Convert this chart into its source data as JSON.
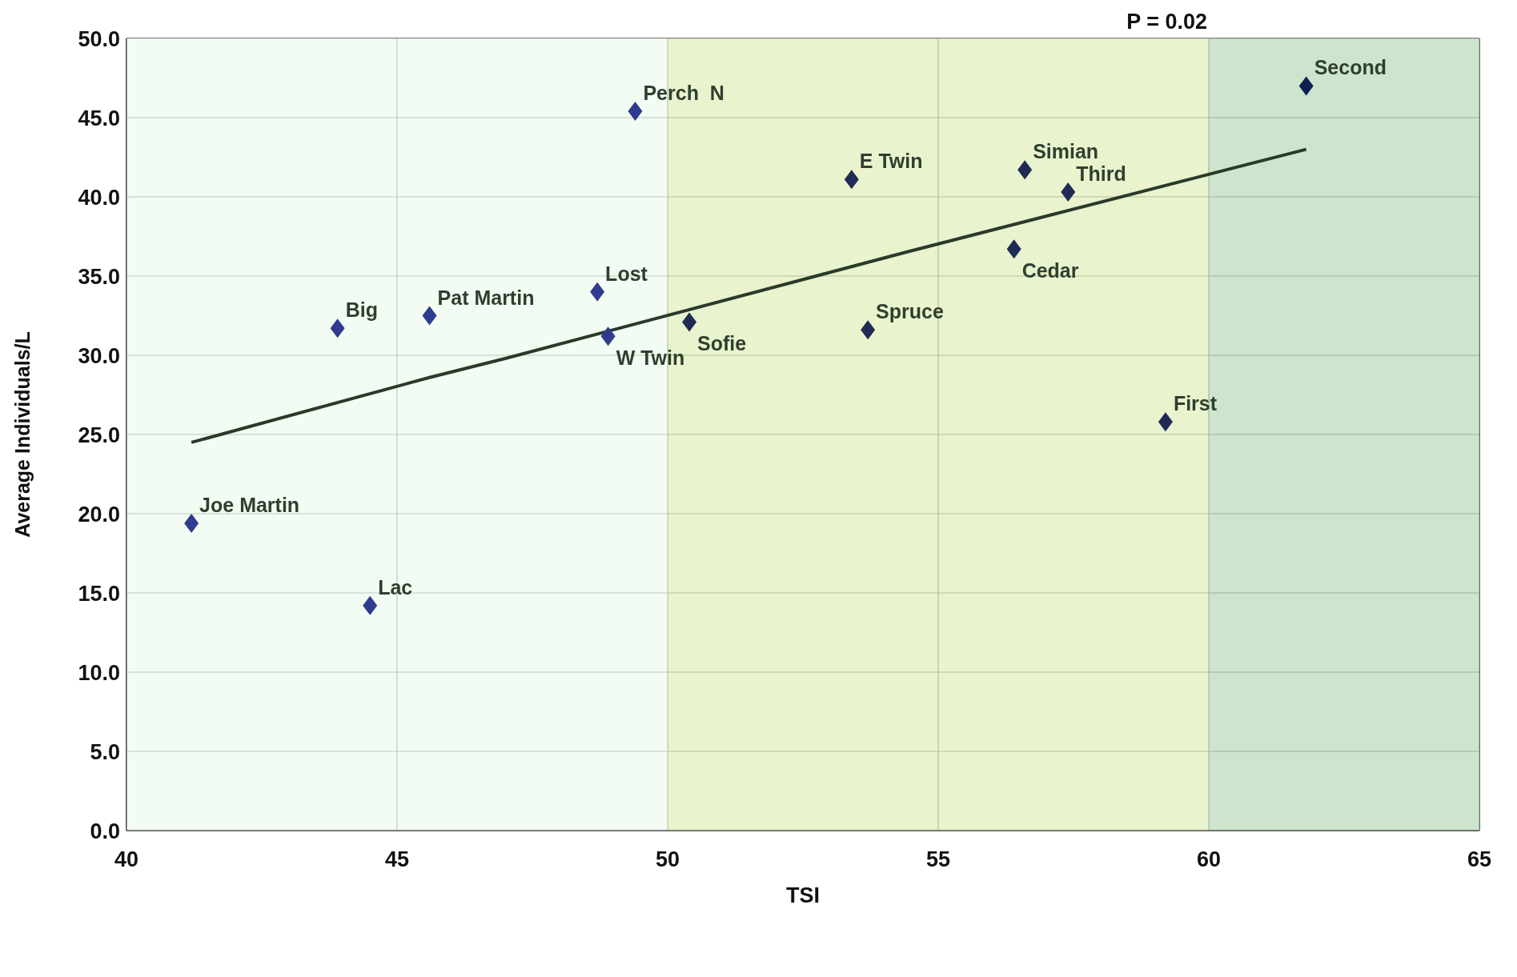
{
  "chart_data": {
    "type": "scatter",
    "xlabel": "TSI",
    "ylabel": "Average Individuals/L",
    "annotations": [
      "P = 0.02"
    ],
    "xlim": [
      40,
      65
    ],
    "xticks": [
      40,
      45,
      50,
      55,
      60,
      65
    ],
    "ylim": [
      0,
      50
    ],
    "yticks": [
      {
        "value": 0,
        "label": "0.0"
      },
      {
        "value": 5,
        "label": "5.0"
      },
      {
        "value": 10,
        "label": "10.0"
      },
      {
        "value": 15,
        "label": "15.0"
      },
      {
        "value": 20,
        "label": "20.0"
      },
      {
        "value": 25,
        "label": "25.0"
      },
      {
        "value": 30,
        "label": "30.0"
      },
      {
        "value": 35,
        "label": "35.0"
      },
      {
        "value": 40,
        "label": "40.0"
      },
      {
        "value": 45,
        "label": "45.0"
      },
      {
        "value": 50,
        "label": "50.0"
      }
    ],
    "grid": true,
    "legend": false,
    "bands": [
      {
        "axis": "x",
        "from": 40,
        "to": 50,
        "color": "#f0fbef"
      },
      {
        "axis": "x",
        "from": 50,
        "to": 60,
        "color": "#e4f0c0"
      },
      {
        "axis": "x",
        "from": 60,
        "to": 65,
        "color": "#c0dfc0"
      }
    ],
    "series": [
      {
        "type": "scatter",
        "marker": "diamond",
        "color": "#2e3b8f",
        "x": [
          41.2,
          44.5,
          43.9,
          45.6,
          48.7,
          48.9,
          49.4,
          50.4,
          53.4,
          53.7,
          56.4,
          56.6,
          57.4,
          59.2,
          61.8
        ],
        "values": [
          19.4,
          14.2,
          31.7,
          32.5,
          34.0,
          31.2,
          45.4,
          32.1,
          41.1,
          31.6,
          36.7,
          41.7,
          40.3,
          25.8,
          47.0
        ],
        "value_labels": [
          "Joe Martin",
          "Lac",
          "Big",
          "Pat Martin",
          "Lost",
          "W Twin",
          "Perch  N",
          "Sofie",
          "E Twin",
          "Spruce",
          "Cedar",
          "Simian",
          "Third",
          "First",
          "Second"
        ],
        "colors": [
          "#2e3b8f",
          "#2e3b8f",
          "#2e3b8f",
          "#2e3b8f",
          "#2e3b8f",
          "#2e3b8f",
          "#2e3b8f",
          "#1f2a55",
          "#1f2a55",
          "#1f2a55",
          "#1f2a55",
          "#1f2a55",
          "#1f2a55",
          "#1f2a55",
          "#0f2050"
        ]
      },
      {
        "type": "line",
        "color": "#2a3a2a",
        "x": [
          41.2,
          45.6,
          47.0,
          54.4,
          61.8
        ],
        "values": [
          24.5,
          28.6,
          29.8,
          36.5,
          43.0
        ]
      }
    ]
  }
}
